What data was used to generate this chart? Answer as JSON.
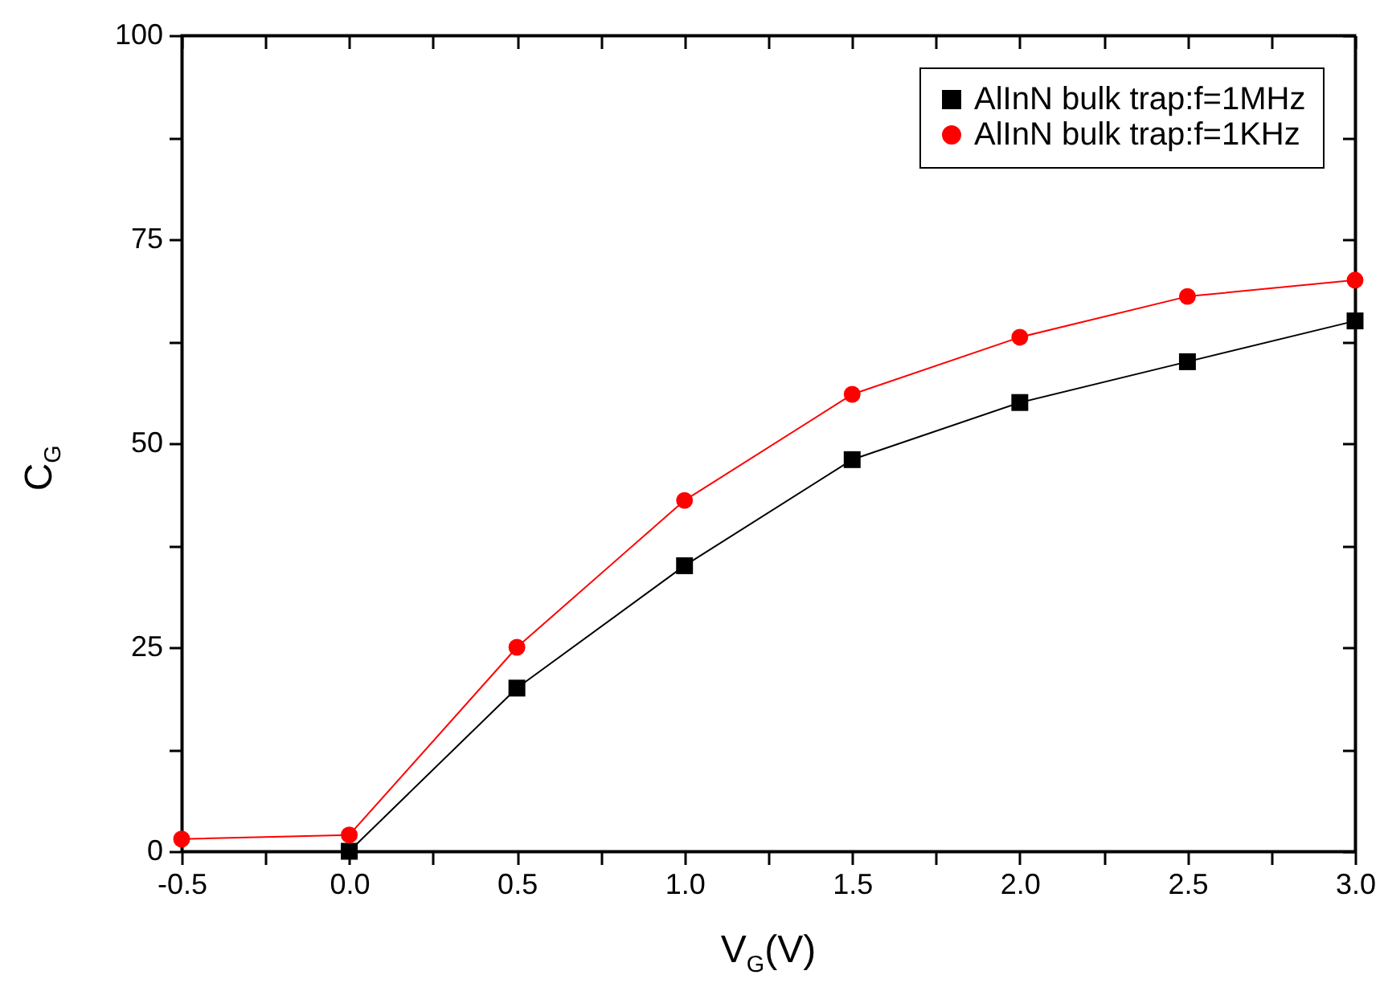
{
  "chart_data": {
    "type": "line",
    "xlabel": "V$_{G}$(V)",
    "ylabel": "C$_{G}$",
    "xlim": [
      -0.5,
      3
    ],
    "xticks": [
      -0.5,
      {
        "value": -0.25,
        "label": null
      },
      {
        "value": 0,
        "label": "0.0"
      },
      {
        "value": 0.25,
        "label": null
      },
      0.5,
      {
        "value": 0.75,
        "label": null
      },
      {
        "value": 1,
        "label": "1.0"
      },
      {
        "value": 1.25,
        "label": null
      },
      1.5,
      {
        "value": 1.75,
        "label": null
      },
      {
        "value": 2,
        "label": "2.0"
      },
      {
        "value": 2.25,
        "label": null
      },
      2.5,
      {
        "value": 2.75,
        "label": null
      },
      {
        "value": 3,
        "label": "3.0"
      }
    ],
    "ylim": [
      0,
      100
    ],
    "yticks": [
      0,
      {
        "value": 12.5,
        "label": null
      },
      25,
      {
        "value": 37.5,
        "label": null
      },
      50,
      {
        "value": 62.5,
        "label": null
      },
      75,
      {
        "value": 87.5,
        "label": null
      },
      100
    ],
    "grid": false,
    "legend": "top right",
    "series": [
      {
        "name": "AlInN bulk trap:f=1MHz",
        "color": "#000000",
        "marker": "square",
        "x": [
          0,
          0.5,
          1,
          1.5,
          2,
          2.5,
          3
        ],
        "values": [
          0,
          20,
          35,
          48,
          55,
          60,
          65
        ]
      },
      {
        "name": "AlInN bulk trap:f=1KHz",
        "color": "#ff0000",
        "marker": "circle",
        "x": [
          -0.5,
          0,
          0.5,
          1,
          1.5,
          2,
          2.5,
          3
        ],
        "values": [
          1.5,
          2,
          25,
          43,
          56,
          63,
          68,
          70
        ]
      }
    ]
  }
}
